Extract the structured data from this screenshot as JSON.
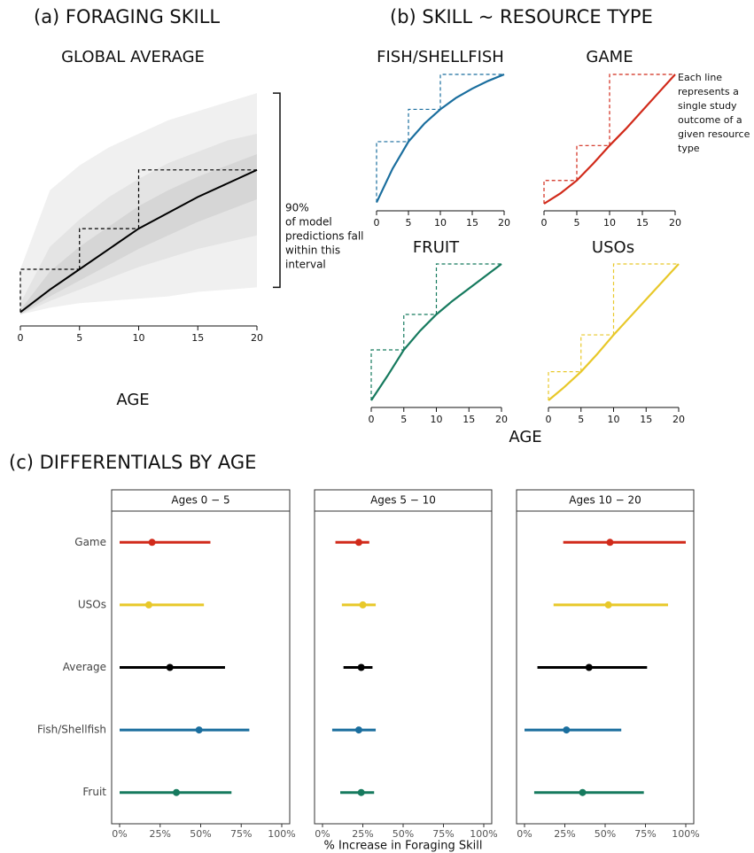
{
  "panel_titles": [
    "(a) FORAGING SKILL",
    "(b) SKILL ~ RESOURCE TYPE",
    "(c) DIFFERENTIALS BY AGE"
  ],
  "shared_labels": {
    "b_xlabel": "AGE",
    "c_xlabel": "% Increase in Foraging Skill"
  },
  "chart_data": [
    {
      "type": "line",
      "title": "GLOBAL AVERAGE",
      "xlabel": "AGE",
      "x": [
        0,
        2.5,
        5,
        7.5,
        10,
        12.5,
        15,
        17.5,
        20
      ],
      "xlim": [
        0,
        20
      ],
      "xticks": [
        0,
        5,
        10,
        15,
        20
      ],
      "ylim": [
        0,
        1
      ],
      "series": [
        {
          "color": "#000000",
          "values": [
            0.01,
            0.11,
            0.2,
            0.29,
            0.38,
            0.45,
            0.52,
            0.58,
            0.64
          ]
        }
      ],
      "bands": [
        {
          "color": "#f0f0f0",
          "upper": [
            0.2,
            0.55,
            0.66,
            0.74,
            0.8,
            0.86,
            0.9,
            0.94,
            0.98
          ],
          "lower": [
            0,
            0.03,
            0.05,
            0.06,
            0.07,
            0.08,
            0.1,
            0.11,
            0.12
          ]
        },
        {
          "color": "#e4e4e4",
          "upper": [
            0.05,
            0.3,
            0.42,
            0.52,
            0.6,
            0.67,
            0.72,
            0.77,
            0.8
          ],
          "lower": [
            0,
            0.06,
            0.11,
            0.16,
            0.21,
            0.25,
            0.29,
            0.32,
            0.35
          ]
        },
        {
          "color": "#d6d6d6",
          "upper": [
            0.02,
            0.19,
            0.3,
            0.39,
            0.48,
            0.55,
            0.61,
            0.66,
            0.71
          ],
          "lower": [
            0,
            0.08,
            0.15,
            0.22,
            0.29,
            0.35,
            0.41,
            0.46,
            0.51
          ]
        }
      ],
      "annotation": [
        "90%",
        "of model",
        "predictions fall",
        "within this",
        "interval"
      ]
    },
    {
      "type": "line",
      "title": "FISH/SHELLFISH",
      "x": [
        0,
        2.5,
        5,
        7.5,
        10,
        12.5,
        15,
        17.5,
        20
      ],
      "xlim": [
        0,
        20
      ],
      "xticks": [
        0,
        5,
        10,
        15,
        20
      ],
      "ylim": [
        0,
        1
      ],
      "series": [
        {
          "color": "#1a6e9e",
          "values": [
            0.01,
            0.27,
            0.48,
            0.62,
            0.73,
            0.82,
            0.89,
            0.95,
            1.0
          ]
        }
      ]
    },
    {
      "type": "line",
      "title": "GAME",
      "x": [
        0,
        2.5,
        5,
        7.5,
        10,
        12.5,
        15,
        17.5,
        20
      ],
      "xlim": [
        0,
        20
      ],
      "xticks": [
        0,
        5,
        10,
        15,
        20
      ],
      "ylim": [
        0,
        1
      ],
      "series": [
        {
          "color": "#d12a1a",
          "values": [
            0,
            0.08,
            0.18,
            0.31,
            0.45,
            0.58,
            0.72,
            0.86,
            1.0
          ]
        }
      ],
      "annotation": [
        "Each line",
        "represents a",
        "single study",
        "outcome of a",
        "given resource",
        "type"
      ]
    },
    {
      "type": "line",
      "title": "FRUIT",
      "x": [
        0,
        2.5,
        5,
        7.5,
        10,
        12.5,
        15,
        17.5,
        20
      ],
      "xlim": [
        0,
        20
      ],
      "xticks": [
        0,
        5,
        10,
        15,
        20
      ],
      "ylim": [
        0,
        1
      ],
      "series": [
        {
          "color": "#167a5e",
          "values": [
            0,
            0.18,
            0.37,
            0.51,
            0.63,
            0.73,
            0.82,
            0.91,
            1.0
          ]
        }
      ]
    },
    {
      "type": "line",
      "title": "USOs",
      "x": [
        0,
        2.5,
        5,
        7.5,
        10,
        12.5,
        15,
        17.5,
        20
      ],
      "xlim": [
        0,
        20
      ],
      "xticks": [
        0,
        5,
        10,
        15,
        20
      ],
      "ylim": [
        0,
        1
      ],
      "series": [
        {
          "color": "#e8c82a",
          "values": [
            0,
            0.1,
            0.21,
            0.34,
            0.48,
            0.61,
            0.74,
            0.87,
            1.0
          ]
        }
      ]
    },
    {
      "type": "dotwhisker",
      "title": "Ages 0 − 5",
      "categories": [
        "Game",
        "USOs",
        "Average",
        "Fish/Shellfish",
        "Fruit"
      ],
      "colors": [
        "#d12a1a",
        "#e8c82a",
        "#000000",
        "#1a6e9e",
        "#167a5e"
      ],
      "values": [
        20,
        18,
        31,
        49,
        35
      ],
      "lower": [
        0,
        0,
        0,
        0,
        0
      ],
      "upper": [
        56,
        52,
        65,
        80,
        69
      ],
      "xlim": [
        0,
        100
      ],
      "xticks": [
        {
          "value": 0,
          "label": "0%"
        },
        {
          "value": 25,
          "label": "25%"
        },
        {
          "value": 50,
          "label": "50%"
        },
        {
          "value": 75,
          "label": "75%"
        },
        {
          "value": 100,
          "label": "100%"
        }
      ]
    },
    {
      "type": "dotwhisker",
      "title": "Ages 5 − 10",
      "categories": [
        "Game",
        "USOs",
        "Average",
        "Fish/Shellfish",
        "Fruit"
      ],
      "colors": [
        "#d12a1a",
        "#e8c82a",
        "#000000",
        "#1a6e9e",
        "#167a5e"
      ],
      "values": [
        22.5,
        25,
        24,
        22.5,
        24
      ],
      "lower": [
        8,
        12,
        13,
        6,
        11
      ],
      "upper": [
        29,
        33,
        31,
        33,
        32
      ],
      "xlim": [
        0,
        100
      ],
      "xticks": [
        {
          "value": 0,
          "label": "0%"
        },
        {
          "value": 25,
          "label": "25%"
        },
        {
          "value": 50,
          "label": "50%"
        },
        {
          "value": 75,
          "label": "75%"
        },
        {
          "value": 100,
          "label": "100%"
        }
      ]
    },
    {
      "type": "dotwhisker",
      "title": "Ages 10 − 20",
      "categories": [
        "Game",
        "USOs",
        "Average",
        "Fish/Shellfish",
        "Fruit"
      ],
      "colors": [
        "#d12a1a",
        "#e8c82a",
        "#000000",
        "#1a6e9e",
        "#167a5e"
      ],
      "values": [
        53,
        52,
        40,
        26,
        36
      ],
      "lower": [
        24,
        18,
        8,
        0,
        6
      ],
      "upper": [
        100,
        89,
        76,
        60,
        74
      ],
      "xlim": [
        0,
        100
      ],
      "xticks": [
        {
          "value": 0,
          "label": "0%"
        },
        {
          "value": 25,
          "label": "25%"
        },
        {
          "value": 50,
          "label": "50%"
        },
        {
          "value": 75,
          "label": "75%"
        },
        {
          "value": 100,
          "label": "100%"
        }
      ]
    }
  ]
}
